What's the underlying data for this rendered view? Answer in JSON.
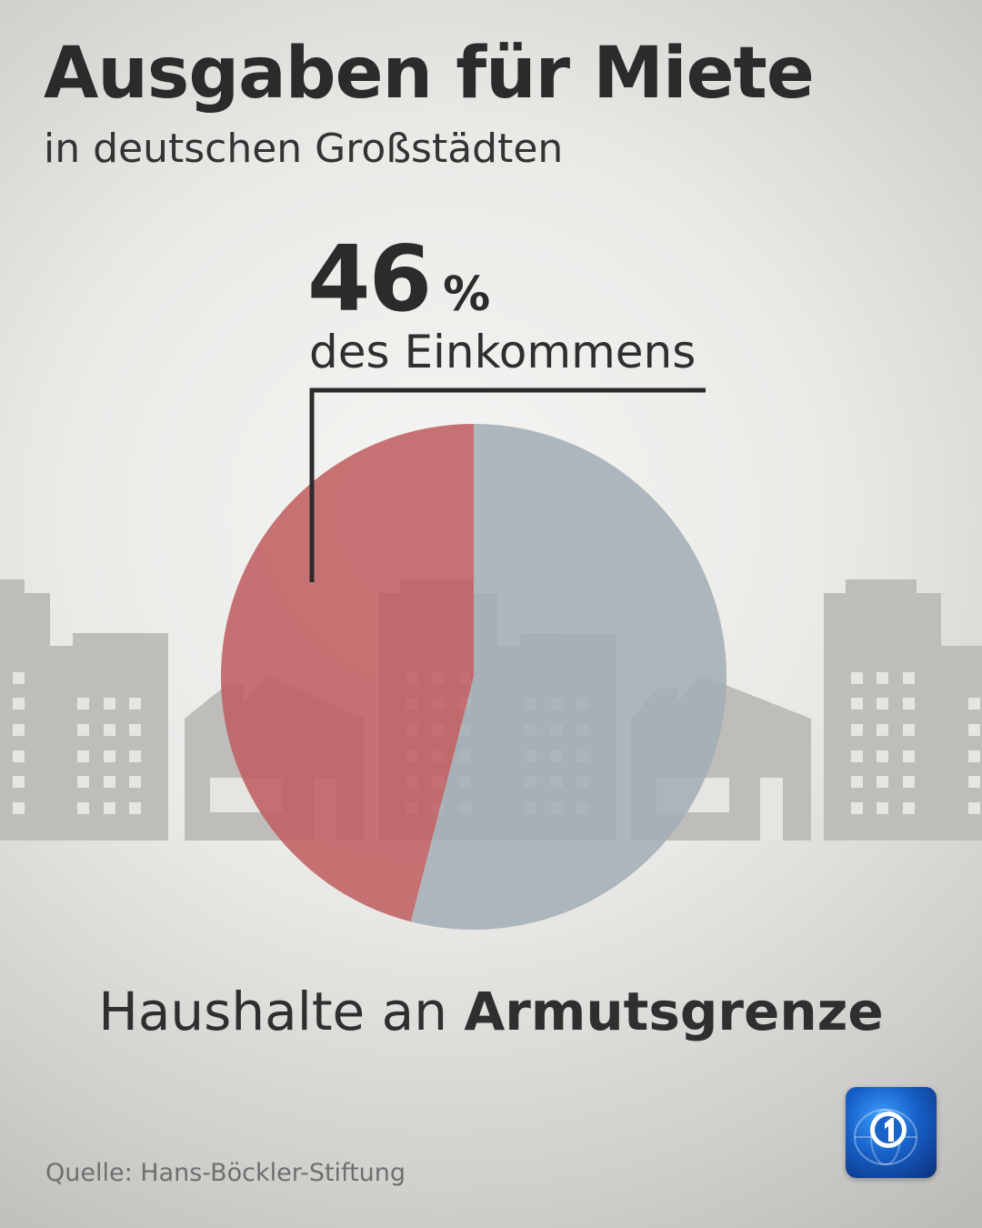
{
  "header": {
    "title": "Ausgaben für Miete",
    "subtitle": "in deutschen Großstädten"
  },
  "callout": {
    "value": "46",
    "unit": "%",
    "caption": "des Einkommens"
  },
  "category": {
    "prefix": "Haushalte an",
    "highlight": "Armutsgrenze"
  },
  "footer": {
    "source": "Quelle: Hans-Böckler-Stiftung"
  },
  "logo": {
    "icon": "tagesschau-logo-icon"
  },
  "colors": {
    "rent_slice": "#bf5f61",
    "rest_slice": "#a4aeb6",
    "buildings": "#bdbcb9",
    "leader_line": "#2b2b2b"
  },
  "chart_data": {
    "type": "pie",
    "title": "Ausgaben für Miete",
    "subtitle": "in deutschen Großstädten",
    "slices": [
      {
        "label": "des Einkommens",
        "value": 46,
        "color": "#bf5f61"
      },
      {
        "value": 54,
        "color": "#a4aeb6"
      }
    ],
    "annotation": "46 % des Einkommens",
    "category_label": "Haushalte an Armutsgrenze"
  }
}
